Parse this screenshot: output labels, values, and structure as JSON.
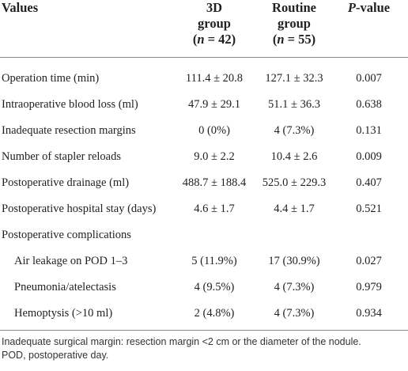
{
  "table": {
    "header": [
      [
        [
          {
            "t": "Values"
          }
        ]
      ],
      [
        [
          {
            "t": "3D"
          }
        ],
        [
          {
            "t": "group"
          }
        ],
        [
          {
            "t": "("
          },
          {
            "t": "n",
            "italic": true
          },
          {
            "t": " = 42)"
          }
        ]
      ],
      [
        [
          {
            "t": "Routine"
          }
        ],
        [
          {
            "t": "group"
          }
        ],
        [
          {
            "t": "("
          },
          {
            "t": "n",
            "italic": true
          },
          {
            "t": " = 55)"
          }
        ]
      ],
      [
        [
          {
            "t": "P",
            "italic": true
          },
          {
            "t": "-value"
          }
        ]
      ]
    ],
    "rows": [
      {
        "cells": [
          "Operation time (min)",
          "111.4 ± 20.8",
          "127.1 ± 32.3",
          "0.007"
        ]
      },
      {
        "cells": [
          "Intraoperative blood loss (ml)",
          "47.9 ± 29.1",
          "51.1 ± 36.3",
          "0.638"
        ]
      },
      {
        "cells": [
          "Inadequate resection margins",
          "0 (0%)",
          "4 (7.3%)",
          "0.131"
        ]
      },
      {
        "cells": [
          "Number of stapler reloads",
          "9.0 ± 2.2",
          "10.4 ± 2.6",
          "0.009"
        ]
      },
      {
        "cells": [
          "Postoperative drainage (ml)",
          "488.7 ± 188.4",
          "525.0 ± 229.3",
          "0.407"
        ]
      },
      {
        "cells": [
          "Postoperative hospital stay (days)",
          "4.6 ± 1.7",
          "4.4 ± 1.7",
          "0.521"
        ]
      },
      {
        "cells": [
          "Postoperative complications"
        ]
      },
      {
        "cells": [
          "Air leakage on POD 1–3",
          "5 (11.9%)",
          "17 (30.9%)",
          "0.027"
        ],
        "indent": true
      },
      {
        "cells": [
          "Pneumonia/atelectasis",
          "4 (9.5%)",
          "4 (7.3%)",
          "0.979"
        ],
        "indent": true
      },
      {
        "cells": [
          "Hemoptysis (>10 ml)",
          "2 (4.8%)",
          "4 (7.3%)",
          "0.934"
        ],
        "indent": true
      }
    ]
  },
  "footnotes": [
    "Inadequate surgical margin: resection margin <2 cm or the diameter of the nodule.",
    "POD, postoperative day."
  ]
}
